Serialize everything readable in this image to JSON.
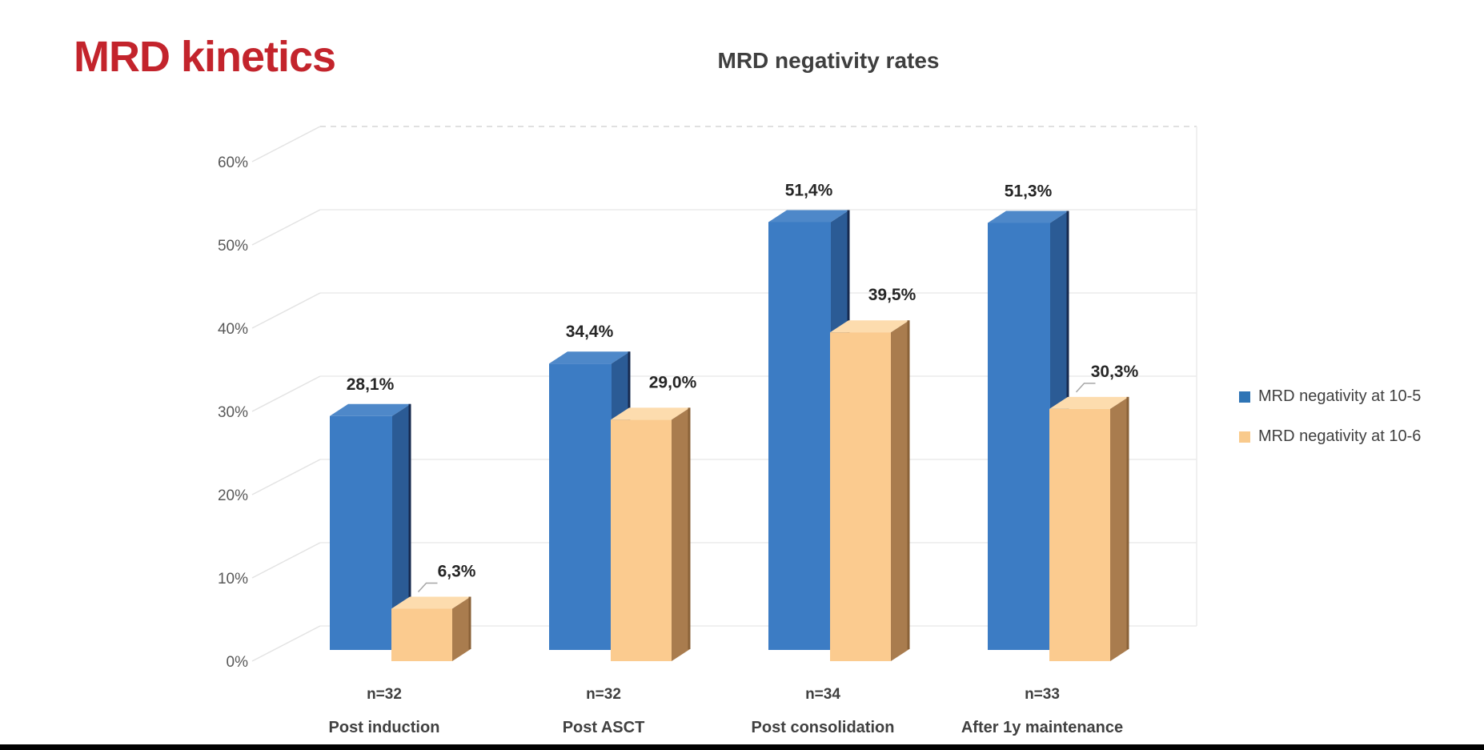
{
  "slide": {
    "title": "MRD kinetics"
  },
  "theme": {
    "title_color": "#C3242C",
    "chart_title_color": "#3F3F3F",
    "axis_text_color": "#595959",
    "value_label_color": "#262626",
    "category_text_color": "#404040",
    "legend_text_color": "#404040",
    "gridline_color": "#EBEBEB",
    "gridline_diag_color": "#E3E3E3",
    "gridline_top_dashed_color": "#D6D6D6",
    "leader_line_color": "#A6A6A6",
    "bottom_bar_color": "#000000",
    "background_color": "#FFFFFF"
  },
  "chart_data": {
    "type": "bar",
    "projection": "3d",
    "title": "MRD negativity rates",
    "categories": [
      "Post induction",
      "Post ASCT",
      "Post consolidation",
      "After 1y maintenance"
    ],
    "category_sublabels": [
      "n=32",
      "n=32",
      "n=34",
      "n=33"
    ],
    "yticks": [
      0,
      10,
      20,
      30,
      40,
      50,
      60
    ],
    "ytick_suffix": "%",
    "ylim": [
      0,
      60
    ],
    "grid": true,
    "legend_position": "right",
    "series": [
      {
        "name": "MRD negativity at 10-5",
        "values": [
          28.1,
          34.4,
          51.4,
          51.3
        ],
        "labels": [
          "28,1%",
          "34,4%",
          "51,4%",
          "51,3%"
        ],
        "leader_lines": [
          false,
          false,
          false,
          false
        ],
        "colors": {
          "front": "#3C7CC4",
          "top": "#4E88C9",
          "side": "#2B5B95",
          "edge": "#16294E",
          "legend": "#2E74B5"
        }
      },
      {
        "name": "MRD negativity at 10-6",
        "values": [
          6.3,
          29.0,
          39.5,
          30.3
        ],
        "labels": [
          "6,3%",
          "29,0%",
          "39,5%",
          "30,3%"
        ],
        "leader_lines": [
          true,
          false,
          false,
          true
        ],
        "colors": {
          "front": "#FBCB8F",
          "top": "#FDDCAE",
          "side": "#A97C4E",
          "edge": "#8A6238",
          "legend": "#F9CA8C"
        }
      }
    ]
  }
}
